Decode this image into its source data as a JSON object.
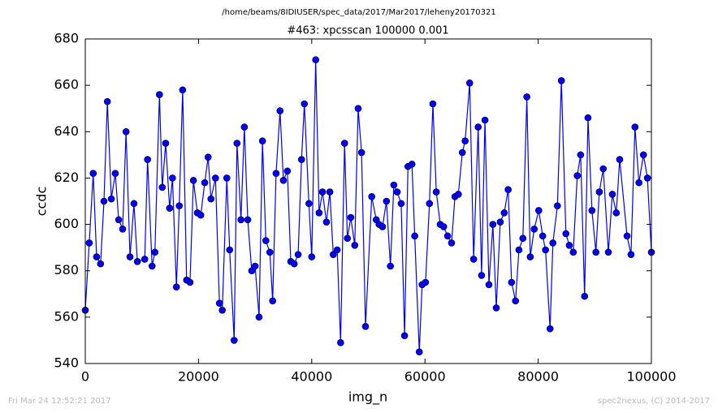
{
  "chart_data": {
    "type": "line",
    "suptitle": "/home/beams/8IDIUSER/spec_data/2017/Mar2017/leheny20170321",
    "title": "#463: xpcsscan 100000 0.001",
    "xlabel": "img_n",
    "ylabel": "ccdc",
    "footer_left": "Fri Mar 24 12:52:21 2017",
    "footer_right": "spec2nexus, (C) 2014-2017",
    "color": "#0000ff",
    "marker": "circle",
    "x": [
      0,
      700,
      1400,
      2000,
      2700,
      3300,
      3900,
      4600,
      5300,
      5900,
      6600,
      7200,
      7900,
      8600,
      9200,
      10500,
      11000,
      11800,
      12300,
      13100,
      13600,
      14200,
      14900,
      15400,
      16100,
      16600,
      17200,
      17900,
      18500,
      19100,
      19800,
      20400,
      21100,
      21700,
      22200,
      23000,
      23700,
      24200,
      25000,
      25500,
      26300,
      26800,
      27500,
      28100,
      28700,
      29400,
      30000,
      30700,
      31300,
      31900,
      32600,
      33100,
      33700,
      34400,
      35000,
      35700,
      36300,
      36900,
      37600,
      38200,
      38700,
      39500,
      40000,
      40700,
      41300,
      41900,
      42600,
      43200,
      43800,
      44500,
      45100,
      45800,
      46300,
      46900,
      47600,
      48200,
      48800,
      49500,
      50600,
      51400,
      51900,
      52500,
      53200,
      53900,
      54500,
      55100,
      55800,
      56400,
      57000,
      57700,
      58200,
      59000,
      59500,
      60100,
      60800,
      61400,
      62000,
      62700,
      63300,
      64000,
      64700,
      65300,
      65900,
      66600,
      67100,
      67900,
      68600,
      69400,
      70000,
      70600,
      71300,
      72000,
      72600,
      73300,
      74000,
      74700,
      75300,
      76000,
      76600,
      77300,
      78000,
      78600,
      79300,
      80100,
      80800,
      81300,
      82100,
      82600,
      83400,
      84100,
      84900,
      85500,
      86200,
      86900,
      87500,
      88200,
      88800,
      89500,
      90200,
      90800,
      91500,
      92400,
      93100,
      93800,
      94400,
      95700,
      96400,
      97100,
      97800,
      98600,
      99300,
      100000
    ],
    "values": [
      563,
      592,
      622,
      586,
      583,
      610,
      653,
      611,
      622,
      602,
      598,
      640,
      586,
      609,
      584,
      585,
      628,
      582,
      588,
      656,
      616,
      635,
      607,
      620,
      573,
      608,
      658,
      576,
      575,
      619,
      605,
      604,
      618,
      629,
      611,
      620,
      566,
      563,
      620,
      589,
      550,
      635,
      602,
      642,
      602,
      580,
      582,
      560,
      636,
      593,
      588,
      567,
      622,
      649,
      619,
      623,
      584,
      583,
      587,
      628,
      652,
      609,
      586,
      671,
      605,
      614,
      601,
      614,
      587,
      589,
      549,
      635,
      594,
      603,
      591,
      650,
      631,
      556,
      612,
      602,
      600,
      599,
      610,
      582,
      617,
      614,
      609,
      552,
      625,
      626,
      595,
      545,
      574,
      575,
      609,
      652,
      614,
      600,
      599,
      595,
      592,
      612,
      613,
      631,
      636,
      661,
      585,
      642,
      578,
      645,
      574,
      600,
      564,
      601,
      605,
      615,
      575,
      567,
      589,
      594,
      655,
      586,
      598,
      606,
      595,
      589,
      555,
      592,
      608,
      662,
      596,
      591,
      588,
      621,
      630,
      569,
      646,
      606,
      588,
      614,
      624,
      588,
      613,
      605,
      628,
      595,
      587,
      642,
      618,
      630,
      620,
      588
    ],
    "xlim": [
      0,
      100000
    ],
    "xticks": [
      0,
      20000,
      40000,
      60000,
      80000,
      100000
    ],
    "ylim": [
      540,
      680
    ],
    "yticks": [
      540,
      560,
      580,
      600,
      620,
      640,
      660,
      680
    ],
    "grid": false
  }
}
